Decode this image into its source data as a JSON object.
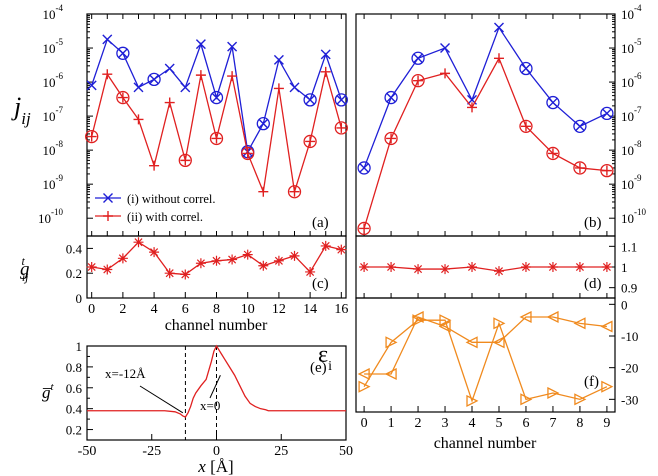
{
  "colors": {
    "blue": "#1f1fd6",
    "red": "#e02020",
    "orange": "#f08a1e",
    "axis": "#000000"
  },
  "chart_data": [
    {
      "panel": "a",
      "type": "line",
      "label": "(a)",
      "ylabel": "j_ij",
      "yscale": "log",
      "ylim": [
        3e-11,
        0.0001
      ],
      "xlim": [
        -0.3,
        16.3
      ],
      "x": [
        0,
        1,
        2,
        3,
        4,
        5,
        6,
        7,
        8,
        9,
        10,
        11,
        12,
        13,
        14,
        15,
        16
      ],
      "ytick_labels": [
        [
          "10",
          "-10"
        ],
        [
          "10",
          "-9"
        ],
        [
          "10",
          "-8"
        ],
        [
          "10",
          "-7"
        ],
        [
          "10",
          "-6"
        ],
        [
          "10",
          "-5"
        ],
        [
          "10",
          "-4"
        ]
      ],
      "ytick_values": [
        1e-10,
        1e-09,
        1e-08,
        1e-07,
        1e-06,
        1e-05,
        0.0001
      ],
      "legend_position": "lower-left",
      "series": [
        {
          "name": "(i) without correl.",
          "color": "blue",
          "values": [
            8e-07,
            1.8e-05,
            7e-06,
            7e-07,
            1.2e-06,
            2.5e-06,
            7e-07,
            1.3e-05,
            3.5e-07,
            1.1e-05,
            9e-09,
            6e-08,
            4.5e-06,
            7e-07,
            3e-07,
            6.5e-06,
            3e-07
          ],
          "circled": [
            2,
            4,
            8,
            10,
            11,
            14,
            16
          ]
        },
        {
          "name": "(ii) with correl.",
          "color": "red",
          "values": [
            2.5e-08,
            1.7e-06,
            3.5e-07,
            8e-08,
            3.5e-09,
            2.5e-07,
            5e-09,
            1.6e-06,
            2.2e-08,
            1.5e-06,
            8e-09,
            6e-10,
            6.5e-07,
            6e-10,
            1.8e-08,
            2e-06,
            4.5e-08
          ],
          "circled": [
            0,
            2,
            6,
            8,
            10,
            13,
            14,
            16
          ]
        }
      ]
    },
    {
      "panel": "b",
      "type": "line",
      "label": "(b)",
      "yscale": "log",
      "ylim": [
        3e-11,
        0.0001
      ],
      "xlim": [
        -0.3,
        9.3
      ],
      "x": [
        0,
        1,
        2,
        3,
        4,
        5,
        6,
        7,
        8,
        9
      ],
      "ytick_labels": [
        [
          "10",
          "-10"
        ],
        [
          "10",
          "-9"
        ],
        [
          "10",
          "-8"
        ],
        [
          "10",
          "-7"
        ],
        [
          "10",
          "-6"
        ],
        [
          "10",
          "-5"
        ],
        [
          "10",
          "-4"
        ]
      ],
      "ytick_values": [
        1e-10,
        1e-09,
        1e-08,
        1e-07,
        1e-06,
        1e-05,
        0.0001
      ],
      "series": [
        {
          "name": "(i) without correl.",
          "color": "blue",
          "values": [
            3e-09,
            3.5e-07,
            5e-06,
            1e-05,
            3e-07,
            4e-05,
            2.5e-06,
            2.5e-07,
            5e-08,
            1.2e-07
          ],
          "circled": [
            0,
            1,
            2,
            6,
            7,
            8,
            9
          ]
        },
        {
          "name": "(ii) with correl.",
          "color": "red",
          "values": [
            5e-11,
            2.2e-08,
            1.1e-06,
            1.8e-06,
            1.8e-07,
            5e-06,
            5e-08,
            8e-09,
            3e-09,
            2.5e-09
          ],
          "circled": [
            0,
            1,
            2,
            6,
            7,
            8,
            9
          ]
        }
      ]
    },
    {
      "panel": "c",
      "type": "line",
      "label": "(c)",
      "ylabel": "g^t_ij",
      "ylim": [
        0,
        0.5
      ],
      "xlim": [
        -0.3,
        16.3
      ],
      "xlabel": "channel number",
      "xtick_labels": [
        "0",
        "2",
        "4",
        "6",
        "8",
        "10",
        "12",
        "14",
        "16"
      ],
      "xtick_values": [
        0,
        2,
        4,
        6,
        8,
        10,
        12,
        14,
        16
      ],
      "ytick_labels": [
        "0",
        "0.2",
        "0.4"
      ],
      "ytick_values": [
        0,
        0.2,
        0.4
      ],
      "x": [
        0,
        1,
        2,
        3,
        4,
        5,
        6,
        7,
        8,
        9,
        10,
        11,
        12,
        13,
        14,
        15,
        16
      ],
      "series": [
        {
          "name": "",
          "color": "red",
          "values": [
            0.25,
            0.23,
            0.32,
            0.45,
            0.37,
            0.2,
            0.19,
            0.28,
            0.3,
            0.31,
            0.35,
            0.26,
            0.3,
            0.34,
            0.21,
            0.42,
            0.39
          ]
        }
      ]
    },
    {
      "panel": "d",
      "type": "line",
      "label": "(d)",
      "ylim": [
        0.85,
        1.15
      ],
      "xlim": [
        -0.3,
        9.3
      ],
      "ytick_labels": [
        "0.9",
        "1",
        "1.1"
      ],
      "ytick_values": [
        0.9,
        1.0,
        1.1
      ],
      "x": [
        0,
        1,
        2,
        3,
        4,
        5,
        6,
        7,
        8,
        9
      ],
      "series": [
        {
          "name": "",
          "color": "red",
          "values": [
            1.0,
            1.0,
            0.99,
            0.99,
            1.0,
            0.98,
            1.0,
            1.0,
            1.0,
            1.0
          ]
        }
      ]
    },
    {
      "panel": "e",
      "type": "line",
      "label": "(e)",
      "ylabel": "g̅^t",
      "xlabel": "x [Å]",
      "xlim": [
        -50,
        50
      ],
      "ylim": [
        0.1,
        1.0
      ],
      "xtick_labels": [
        "-50",
        "-25",
        "0",
        "25",
        "50"
      ],
      "xtick_values": [
        -50,
        -25,
        0,
        25,
        50
      ],
      "ytick_labels": [
        "0.2",
        "0.4",
        "0.6",
        "0.8",
        "1"
      ],
      "ytick_values": [
        0.2,
        0.4,
        0.6,
        0.8,
        1.0
      ],
      "vlines": [
        -12,
        0
      ],
      "annotations": [
        {
          "text": "x=-12Å",
          "x": -12
        },
        {
          "text": "x=0",
          "x": 0
        }
      ],
      "series": [
        {
          "name": "",
          "color": "red",
          "x": [
            -50,
            -20,
            -16,
            -14,
            -13,
            -12,
            -11,
            -10,
            -9,
            -8,
            -6,
            -4,
            -2,
            -1,
            0,
            1,
            2,
            3,
            5,
            7,
            9,
            11,
            13,
            15,
            17,
            19,
            20,
            25,
            50
          ],
          "values": [
            0.38,
            0.38,
            0.37,
            0.35,
            0.33,
            0.32,
            0.36,
            0.42,
            0.5,
            0.55,
            0.62,
            0.68,
            0.85,
            0.95,
            1.0,
            0.96,
            0.92,
            0.88,
            0.8,
            0.72,
            0.62,
            0.52,
            0.45,
            0.42,
            0.4,
            0.39,
            0.38,
            0.38,
            0.38
          ]
        }
      ]
    },
    {
      "panel": "f",
      "type": "line",
      "label": "(f)",
      "ylabel": "ε_i",
      "xlabel": "channel number",
      "xlim": [
        -0.3,
        9.3
      ],
      "ylim": [
        -34,
        2
      ],
      "xtick_labels": [
        "0",
        "1",
        "2",
        "3",
        "4",
        "5",
        "6",
        "7",
        "8",
        "9"
      ],
      "xtick_values": [
        0,
        1,
        2,
        3,
        4,
        5,
        6,
        7,
        8,
        9
      ],
      "ytick_labels": [
        "0",
        "-10",
        "-20",
        "-30"
      ],
      "ytick_values": [
        0,
        -10,
        -20,
        -30
      ],
      "series": [
        {
          "name": "",
          "color": "orange",
          "marker": "right",
          "x": [
            0,
            1,
            2,
            3,
            4,
            5,
            6,
            7,
            8,
            9
          ],
          "values": [
            -26,
            -12,
            -5,
            -5,
            -30.5,
            -6,
            -30,
            -28,
            -30,
            -26
          ]
        },
        {
          "name": "",
          "color": "orange",
          "marker": "left",
          "x": [
            0,
            1,
            2,
            3,
            4,
            5,
            6,
            7,
            8,
            9
          ],
          "values": [
            -22,
            -22,
            -4,
            -7,
            -12,
            -12,
            -4,
            -4,
            -6,
            -7
          ]
        }
      ]
    }
  ]
}
